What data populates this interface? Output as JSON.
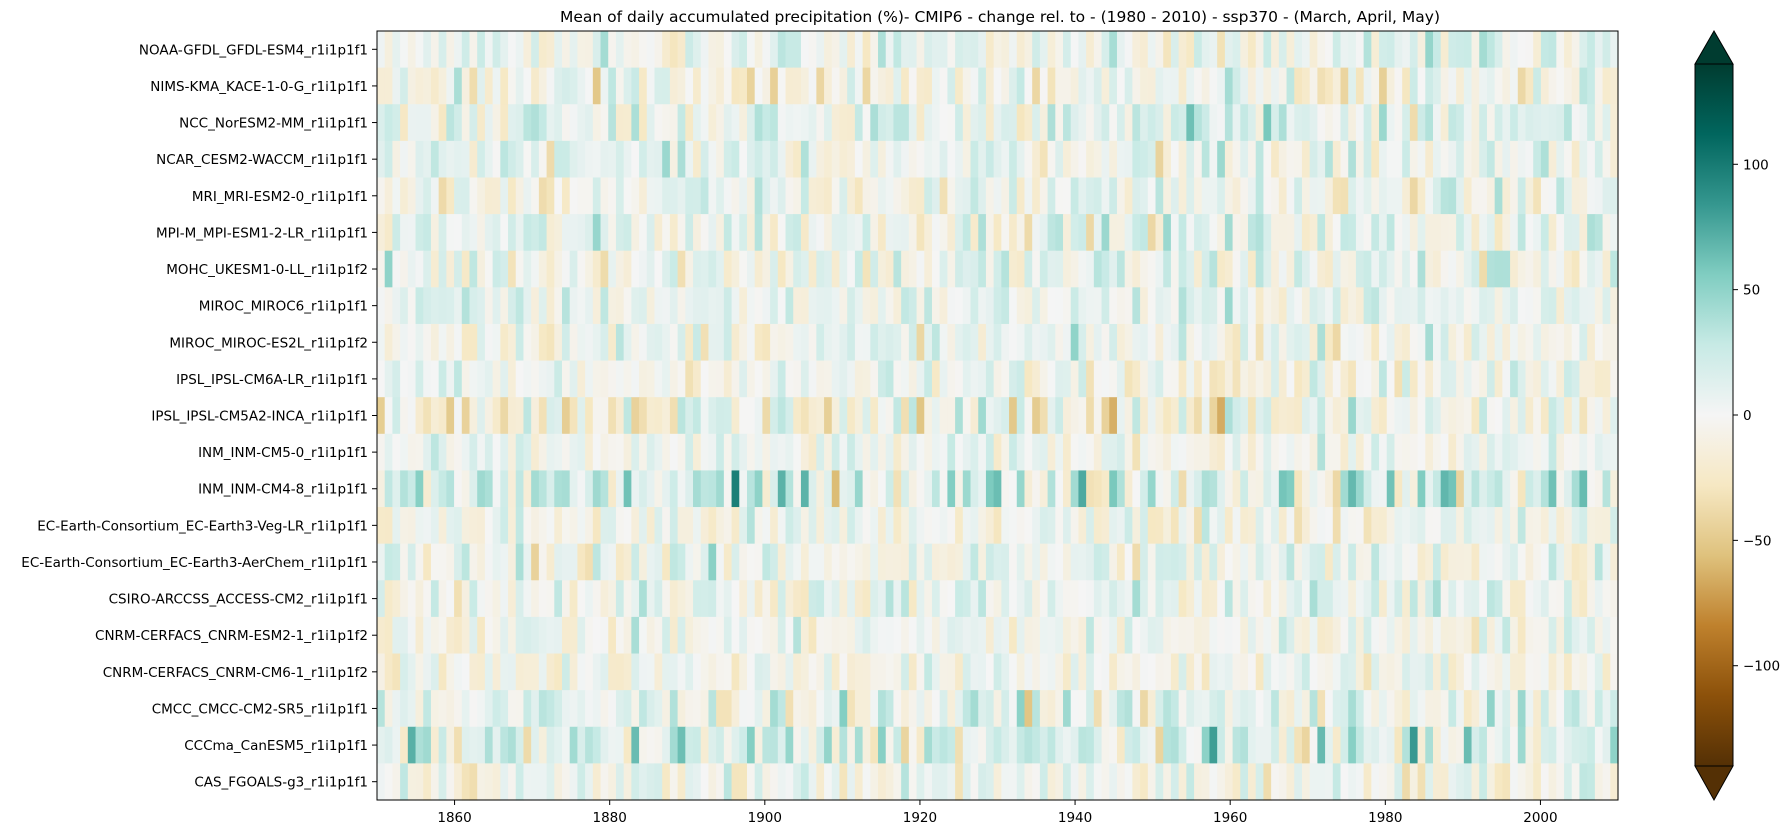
{
  "chart_data": {
    "type": "heatmap",
    "title": "Mean of daily accumulated precipitation (%)- CMIP6 - change rel. to - (1980 - 2010) - ssp370  - (March, April, May)",
    "xlabel": "",
    "ylabel": "",
    "xlim": [
      1850,
      2010
    ],
    "x_ticks": [
      "1860",
      "1880",
      "1900",
      "1920",
      "1940",
      "1960",
      "1980",
      "2000"
    ],
    "x_tick_values": [
      1860,
      1880,
      1900,
      1920,
      1940,
      1960,
      1980,
      2000
    ],
    "year_start": 1850,
    "year_end": 2010,
    "rows": [
      "NOAA-GFDL_GFDL-ESM4_r1i1p1f1",
      "NIMS-KMA_KACE-1-0-G_r1i1p1f1",
      "NCC_NorESM2-MM_r1i1p1f1",
      "NCAR_CESM2-WACCM_r1i1p1f1",
      "MRI_MRI-ESM2-0_r1i1p1f1",
      "MPI-M_MPI-ESM1-2-LR_r1i1p1f1",
      "MOHC_UKESM1-0-LL_r1i1p1f2",
      "MIROC_MIROC6_r1i1p1f1",
      "MIROC_MIROC-ES2L_r1i1p1f2",
      "IPSL_IPSL-CM6A-LR_r1i1p1f1",
      "IPSL_IPSL-CM5A2-INCA_r1i1p1f1",
      "INM_INM-CM5-0_r1i1p1f1",
      "INM_INM-CM4-8_r1i1p1f1",
      "EC-Earth-Consortium_EC-Earth3-Veg-LR_r1i1p1f1",
      "EC-Earth-Consortium_EC-Earth3-AerChem_r1i1p1f1",
      "CSIRO-ARCCSS_ACCESS-CM2_r1i1p1f1",
      "CNRM-CERFACS_CNRM-ESM2-1_r1i1p1f2",
      "CNRM-CERFACS_CNRM-CM6-1_r1i1p1f2",
      "CMCC_CMCC-CM2-SR5_r1i1p1f1",
      "CCCma_CanESM5_r1i1p1f1",
      "CAS_FGOALS-g3_r1i1p1f1"
    ],
    "row_variability": [
      30,
      38,
      34,
      30,
      32,
      34,
      38,
      28,
      30,
      28,
      46,
      24,
      52,
      32,
      34,
      32,
      28,
      26,
      36,
      44,
      30
    ],
    "row_bias": [
      4,
      -4,
      10,
      4,
      0,
      6,
      4,
      6,
      2,
      0,
      -4,
      0,
      18,
      -2,
      2,
      4,
      0,
      -2,
      6,
      12,
      0
    ],
    "colorbar": {
      "ticks": [
        "100",
        "50",
        "0",
        "−50",
        "−100"
      ],
      "tick_values": [
        100,
        50,
        0,
        -50,
        -100
      ],
      "vmin": -140,
      "vmax": 140,
      "extend": "both",
      "colormap": "BrBG"
    },
    "grid": false,
    "legend": "none"
  }
}
